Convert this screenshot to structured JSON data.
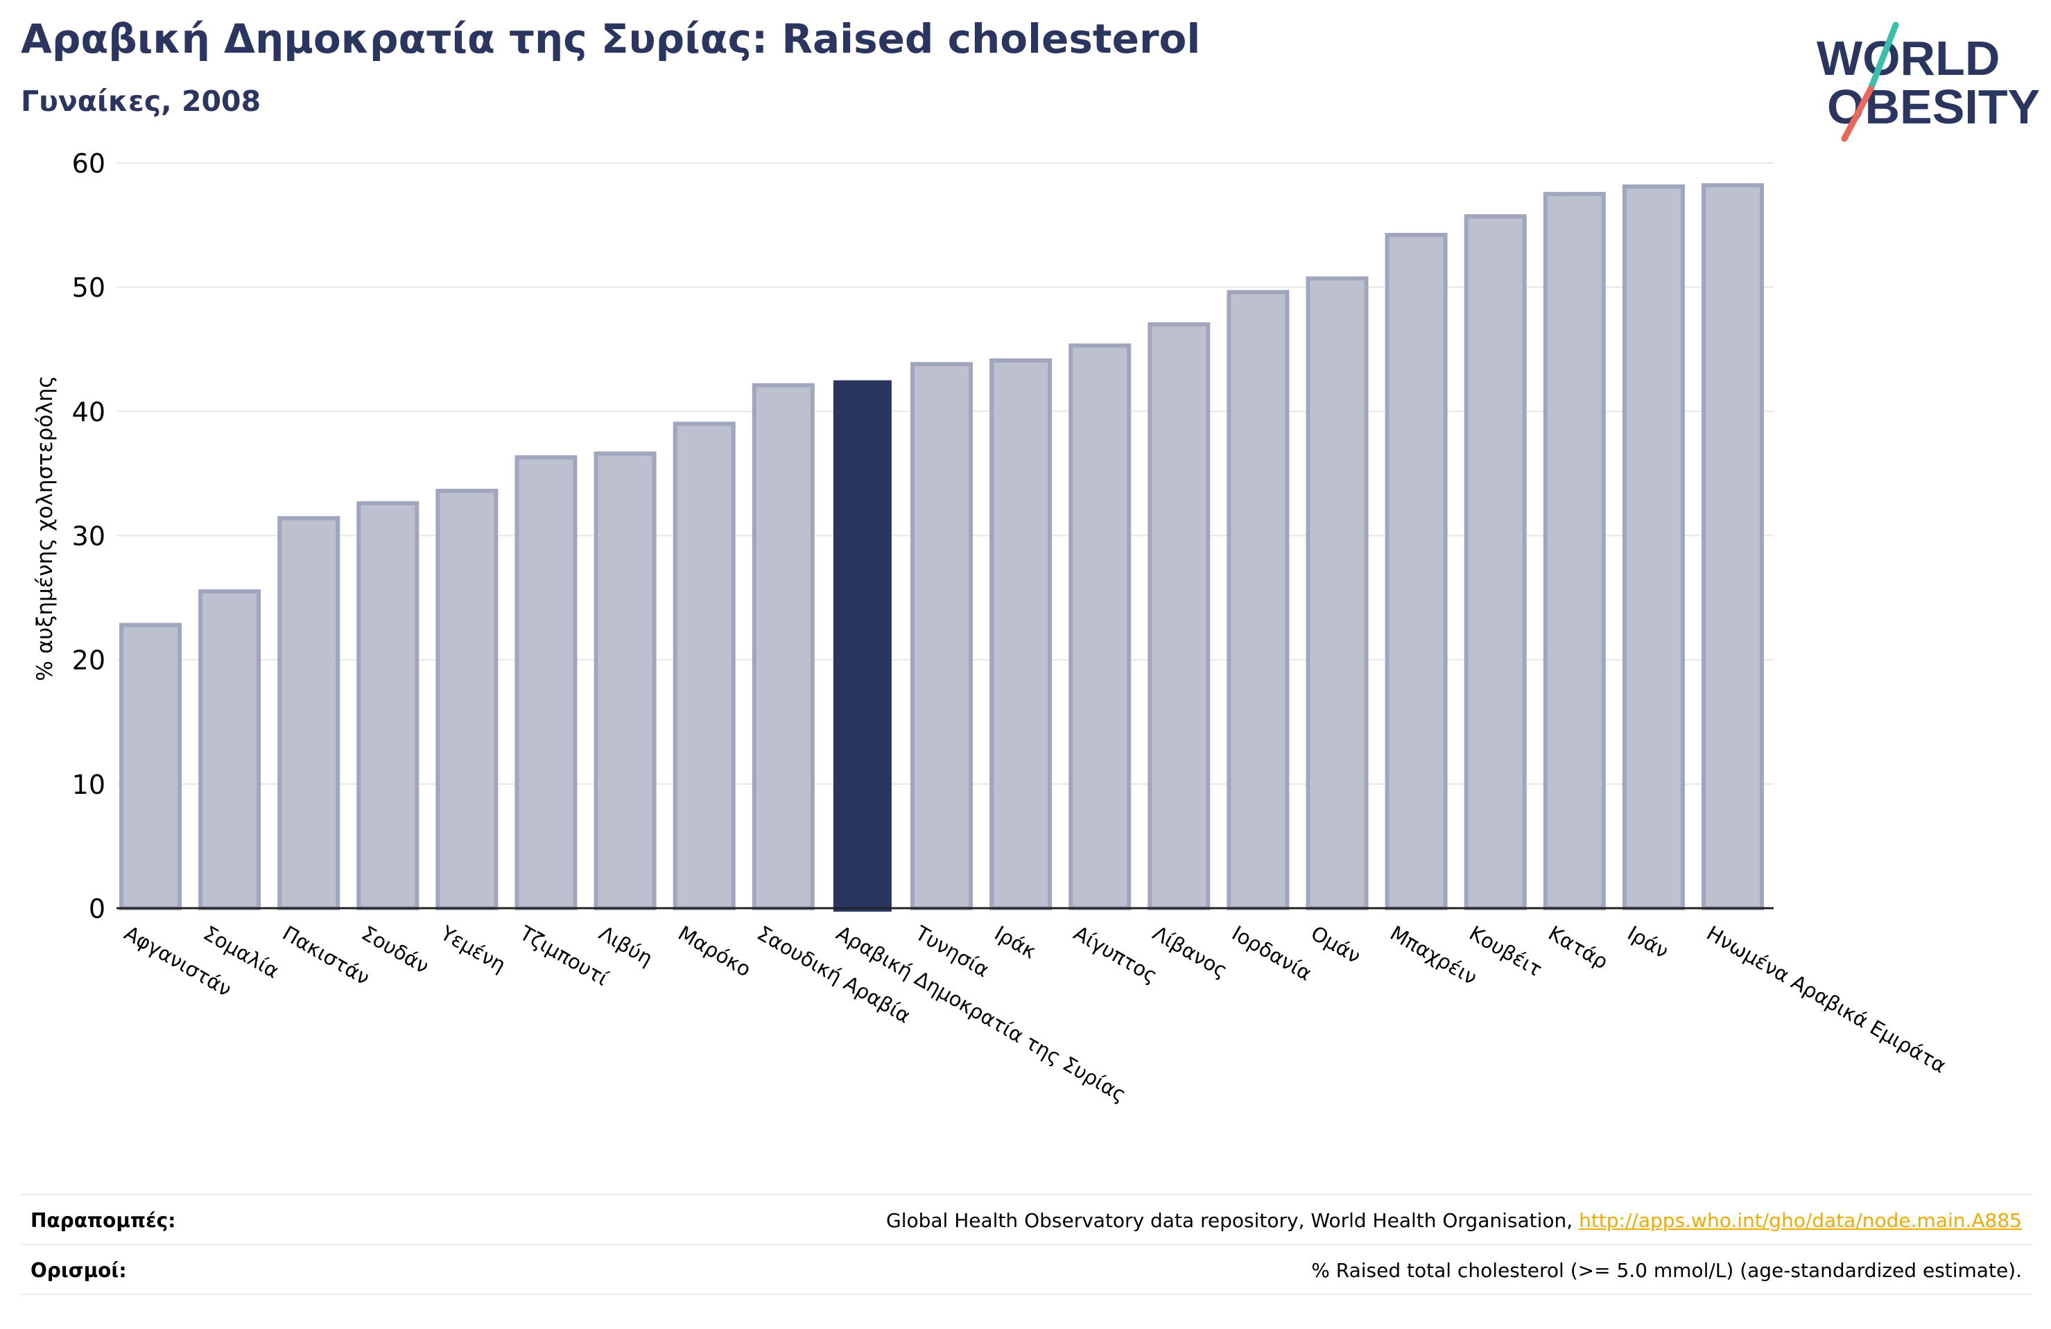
{
  "header": {
    "title": "Αραβική Δημοκρατία της Συρίας: Raised cholesterol",
    "subtitle": "Γυναίκες, 2008"
  },
  "logo": {
    "line1": "WORLD",
    "line2": "OBESITY",
    "accent_teal": "#3bbfad",
    "accent_red": "#e8685a",
    "text_color": "#2a3660"
  },
  "chart_data": {
    "type": "bar",
    "ylabel": "% αυξημένης χοληστερόλης",
    "xlabel": "",
    "ylim": [
      0,
      60
    ],
    "yticks": [
      0,
      10,
      20,
      30,
      40,
      50,
      60
    ],
    "grid": true,
    "highlight_category": "Αραβική Δημοκρατία της Συρίας",
    "highlight_color": "#2a3660",
    "bar_color": "#bcc0cf",
    "bar_edge_color": "#a0a6bd",
    "categories": [
      "Αφγανιστάν",
      "Σομαλία",
      "Πακιστάν",
      "Σουδάν",
      "Υεμένη",
      "Τζιμπουτί",
      "Λιβύη",
      "Μαρόκο",
      "Σαουδική Αραβία",
      "Αραβική Δημοκρατία της Συρίας",
      "Τυνησία",
      "Ιράκ",
      "Αίγυπτος",
      "Λίβανος",
      "Ιορδανία",
      "Ομάν",
      "Μπαχρέιν",
      "Κουβέιτ",
      "Κατάρ",
      "Ιράν",
      "Ηνωμένα Αραβικά Εμιράτα"
    ],
    "values": [
      22.8,
      25.5,
      31.4,
      32.6,
      33.6,
      36.3,
      36.6,
      39.0,
      42.1,
      42.5,
      43.8,
      44.1,
      45.3,
      47.0,
      49.6,
      50.7,
      54.2,
      55.7,
      57.5,
      58.1,
      58.2
    ]
  },
  "footer": {
    "references_label": "Παραπομπές:",
    "references_text": "Global Health Observatory data repository, World Health Organisation, ",
    "references_link": "http://apps.who.int/gho/data/node.main.A885",
    "definitions_label": "Ορισμοί:",
    "definitions_text": "% Raised total cholesterol (>= 5.0 mmol/L) (age-standardized estimate)."
  }
}
